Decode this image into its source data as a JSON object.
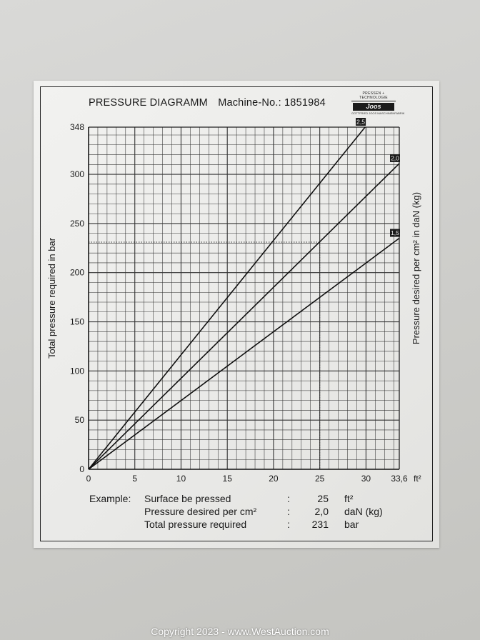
{
  "header": {
    "title": "PRESSURE DIAGRAMM",
    "machine_label": "Machine-No.: 1851984"
  },
  "logo": {
    "top_text": "PRESSEN + TECHNOLOGIE",
    "mark_text": "Joos",
    "bottom_text": "GOTTFRIED JOOS MASCHINENFABRIK"
  },
  "chart_data": {
    "type": "line",
    "xlabel": "",
    "ylabel": "Total pressure required in bar",
    "y2label": "Pressure desired per cm² in daN (kg)",
    "x_unit": "ft²",
    "xlim": [
      0,
      33.6
    ],
    "ylim": [
      0,
      348
    ],
    "x_ticks": [
      "0",
      "5",
      "10",
      "15",
      "20",
      "25",
      "30",
      "33,6"
    ],
    "y_ticks": [
      "0",
      "50",
      "100",
      "150",
      "200",
      "250",
      "300",
      "348"
    ],
    "grid": true,
    "series": [
      {
        "name": "2,5",
        "x": [
          0,
          29.9
        ],
        "y": [
          0,
          348
        ]
      },
      {
        "name": "2,0",
        "x": [
          0,
          33.6
        ],
        "y": [
          0,
          311
        ]
      },
      {
        "name": "1,5",
        "x": [
          0,
          33.6
        ],
        "y": [
          0,
          235
        ]
      }
    ],
    "annotation": {
      "x": 25,
      "y": 231,
      "style": "dotted"
    }
  },
  "example": {
    "heading": "Example:",
    "rows": [
      {
        "label": "Surface be pressed",
        "sep": ":",
        "value": "25",
        "unit": "ft²"
      },
      {
        "label": "Pressure desired per cm²",
        "sep": ":",
        "value": "2,0",
        "unit": "daN (kg)"
      },
      {
        "label": "Total pressure required",
        "sep": ":",
        "value": "231",
        "unit": "bar"
      }
    ]
  },
  "watermark": "Copyright 2023 - www.WestAuction.com"
}
